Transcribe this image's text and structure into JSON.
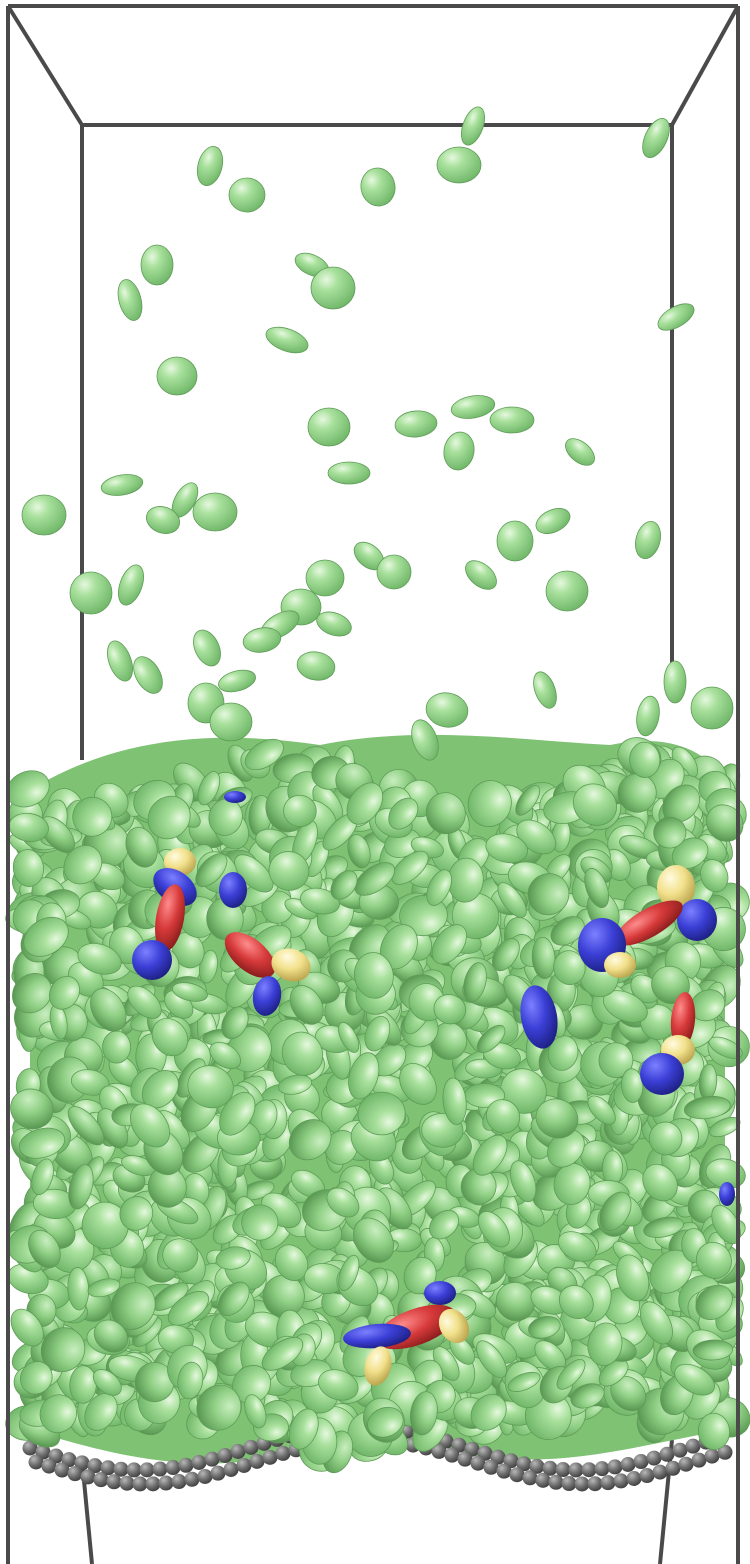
{
  "scene": {
    "colors": {
      "background": "#ffffff",
      "frame": "#4a4a4a",
      "green_particle": "#9ad98f",
      "green_highlight": "#dcf5d4",
      "green_shadow": "#5fa35a",
      "cluster_blue": "#3b3fd6",
      "cluster_red": "#d73a3a",
      "cluster_yellow": "#f2e08a",
      "substrate_bead": "#6e6e6e"
    },
    "clusters": 4
  }
}
